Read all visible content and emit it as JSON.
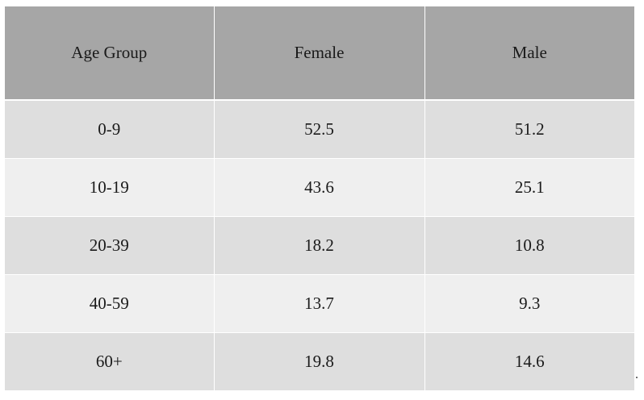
{
  "table": {
    "headers": [
      "Age Group",
      "Female",
      "Male"
    ],
    "rows": [
      [
        "0-9",
        "52.5",
        "51.2"
      ],
      [
        "10-19",
        "43.6",
        "25.1"
      ],
      [
        "20-39",
        "18.2",
        "10.8"
      ],
      [
        "40-59",
        "13.7",
        "9.3"
      ],
      [
        "60+",
        "19.8",
        "14.6"
      ]
    ]
  },
  "trailing_mark": ".",
  "colors": {
    "header_bg": "#a6a6a6",
    "row_odd_bg": "#dedede",
    "row_even_bg": "#efefef",
    "grid": "#ffffff"
  }
}
